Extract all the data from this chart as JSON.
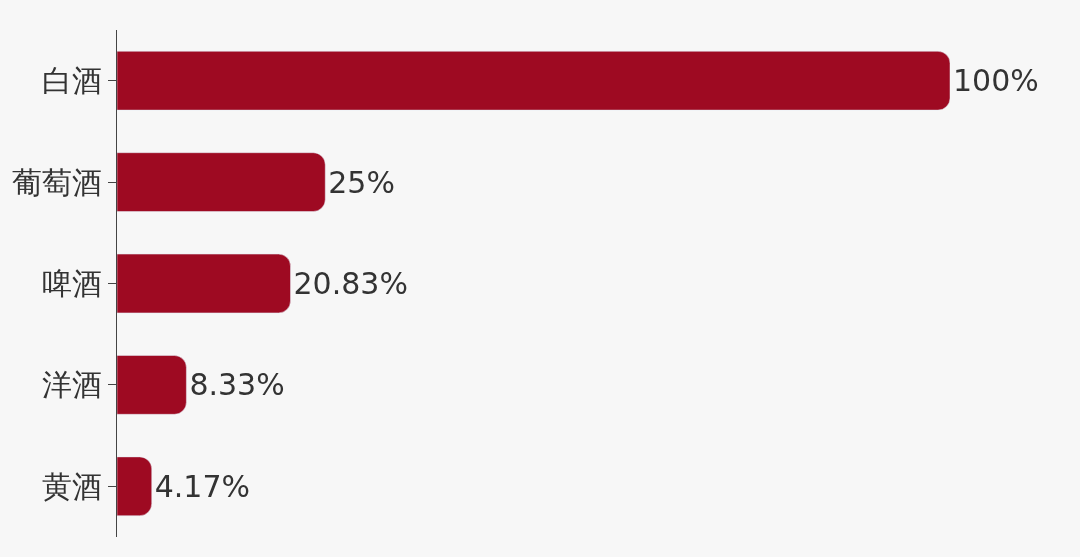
{
  "chart_data": {
    "type": "bar",
    "orientation": "horizontal",
    "categories": [
      "白酒",
      "葡萄酒",
      "啤酒",
      "洋酒",
      "黄酒"
    ],
    "values": [
      100,
      25,
      20.83,
      8.33,
      4.17
    ],
    "value_labels": [
      "100%",
      "25%",
      "20.83%",
      "8.33%",
      "4.17%"
    ],
    "color": "#9e0a22",
    "xlim": [
      0,
      100
    ],
    "grid": false,
    "legend": false,
    "tick_labels": "y"
  }
}
